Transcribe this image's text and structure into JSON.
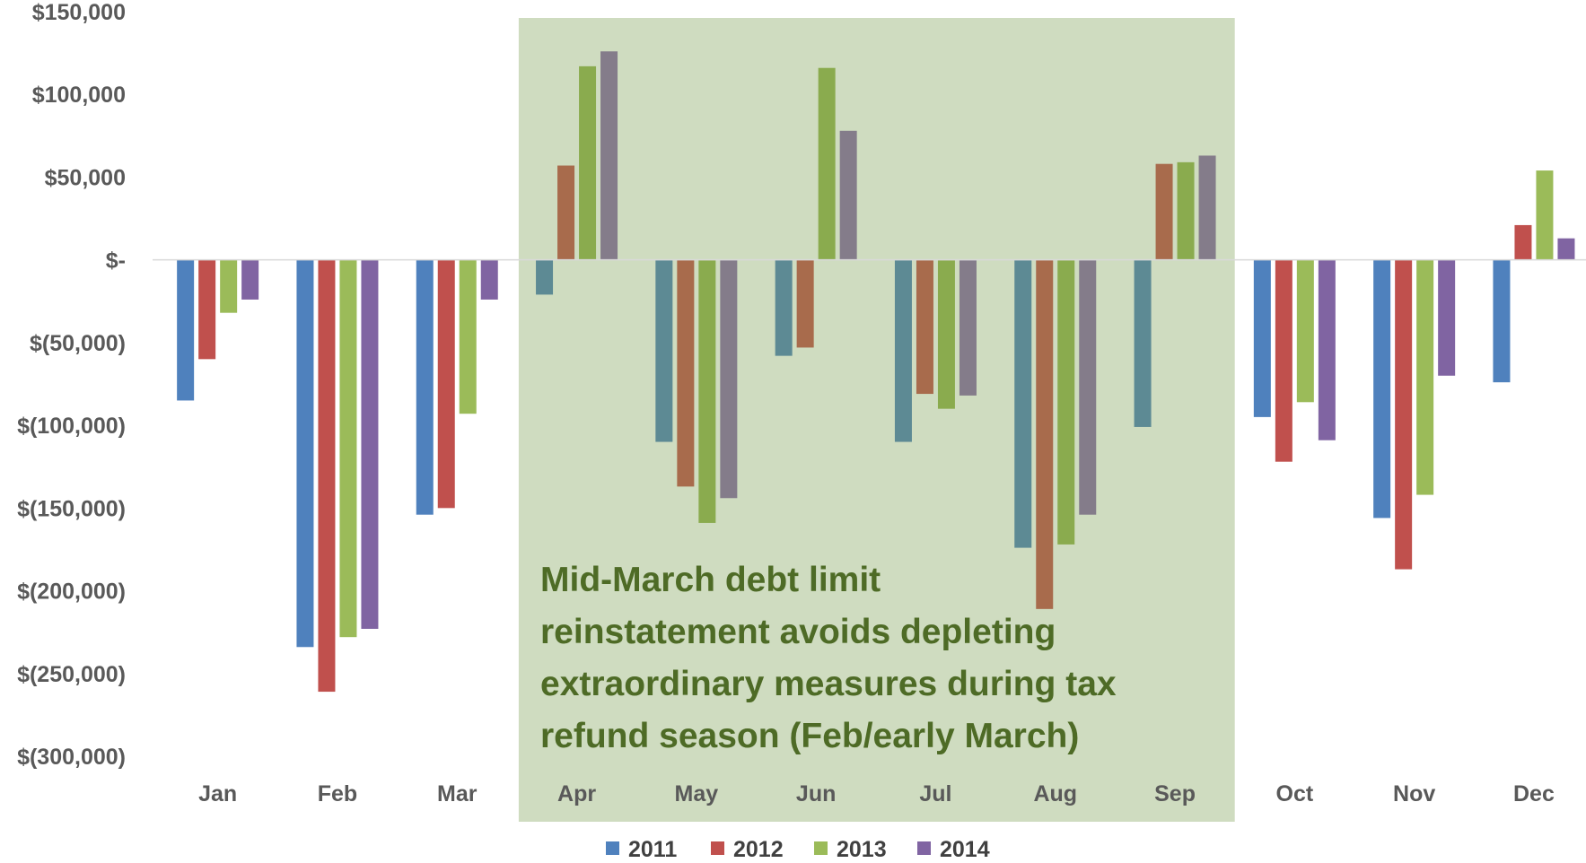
{
  "chart_data": {
    "type": "bar",
    "categories": [
      "Jan",
      "Feb",
      "Mar",
      "Apr",
      "May",
      "Jun",
      "Jul",
      "Aug",
      "Sep",
      "Oct",
      "Nov",
      "Dec"
    ],
    "series": [
      {
        "name": "2011",
        "values": [
          -85000,
          -234000,
          -154000,
          -21000,
          -110000,
          -58000,
          -110000,
          -174000,
          -101000,
          -95000,
          -156000,
          -74000
        ]
      },
      {
        "name": "2012",
        "values": [
          -60000,
          -261000,
          -150000,
          57000,
          -137000,
          -53000,
          -81000,
          -211000,
          58000,
          -122000,
          -187000,
          21000
        ]
      },
      {
        "name": "2013",
        "values": [
          -32000,
          -228000,
          -93000,
          117000,
          -159000,
          116000,
          -90000,
          -172000,
          59000,
          -86000,
          -142000,
          54000
        ]
      },
      {
        "name": "2014",
        "values": [
          -24000,
          -223000,
          -24000,
          126000,
          -144000,
          78000,
          -82000,
          -154000,
          63000,
          -109000,
          -70000,
          13000
        ]
      }
    ],
    "ylim": [
      -300000,
      150000
    ],
    "y_ticks": [
      150000,
      100000,
      50000,
      0,
      -50000,
      -100000,
      -150000,
      -200000,
      -250000,
      -300000
    ],
    "y_tick_labels": [
      "$150,000",
      "$100,000",
      "$50,000",
      "$-",
      "$(50,000)",
      "$(100,000)",
      "$(150,000)",
      "$(200,000)",
      "$(250,000)",
      "$(300,000)"
    ],
    "grid": false,
    "legend_position": "bottom",
    "highlight": {
      "from_category": "Apr",
      "to_category": "Sep",
      "color": "#cfdcc0",
      "text_lines": [
        "Mid-March debt limit",
        "reinstatement avoids depleting",
        "extraordinary measures during tax",
        "refund season (Feb/early March)"
      ],
      "text_color": "#4e6b26"
    },
    "colors": {
      "normal": [
        "#4f81bd",
        "#c0504d",
        "#9bbb59",
        "#8064a2"
      ],
      "highlighted": [
        "#5d8a94",
        "#a86b4c",
        "#8aab4e",
        "#847c8a"
      ],
      "axis": "#d9d9d9",
      "text": "#595959"
    }
  }
}
